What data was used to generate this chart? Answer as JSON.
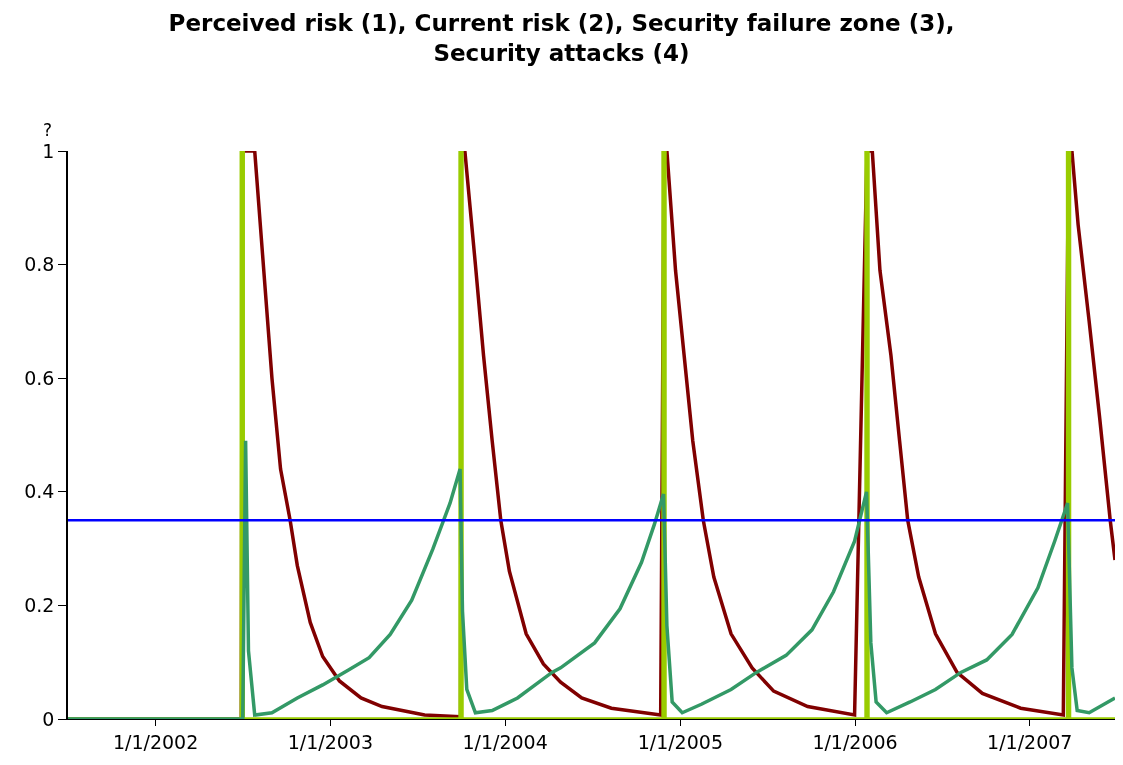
{
  "chart_data": {
    "type": "line",
    "title": "Perceived risk (1), Current risk (2), Security failure zone (3), Security attacks (4)",
    "ylabel": "?",
    "xlim": [
      "2001-07-02",
      "2007-06-28"
    ],
    "xticks": [
      {
        "value": "2002-01-01",
        "label": "1/1/2002"
      },
      {
        "value": "2003-01-01",
        "label": "1/1/2003"
      },
      {
        "value": "2004-01-01",
        "label": "1/1/2004"
      },
      {
        "value": "2005-01-01",
        "label": "1/1/2005"
      },
      {
        "value": "2006-01-01",
        "label": "1/1/2006"
      },
      {
        "value": "2007-01-01",
        "label": "1/1/2007"
      }
    ],
    "ylim": [
      0,
      1
    ],
    "yticks": [
      0,
      0.2,
      0.4,
      0.6,
      0.8,
      1
    ],
    "marker": "none",
    "line_style": "solid",
    "ref_lines": [
      {
        "axis": "y",
        "value": 0.35,
        "color": "#0000ff"
      }
    ],
    "series": [
      {
        "color": "#800000",
        "x": [
          "2001-07-02",
          "2002-06-29",
          "2002-07-01",
          "2002-07-27",
          "2002-08-14",
          "2002-09-01",
          "2002-09-19",
          "2002-10-09",
          "2002-10-24",
          "2002-11-20",
          "2002-12-16",
          "2003-01-20",
          "2003-03-06",
          "2003-04-19",
          "2003-07-17",
          "2003-09-30",
          "2003-10-01",
          "2003-10-09",
          "2003-10-31",
          "2003-11-17",
          "2003-12-05",
          "2003-12-23",
          "2004-01-10",
          "2004-02-14",
          "2004-03-21",
          "2004-04-26",
          "2004-06-09",
          "2004-08-10",
          "2004-11-21",
          "2004-11-28",
          "2004-12-04",
          "2004-12-22",
          "2005-01-09",
          "2005-01-27",
          "2005-02-18",
          "2005-03-12",
          "2005-04-17",
          "2005-05-31",
          "2005-07-15",
          "2005-09-24",
          "2005-12-31",
          "2006-01-26",
          "2006-02-06",
          "2006-02-22",
          "2006-03-17",
          "2006-04-04",
          "2006-04-21",
          "2006-05-14",
          "2006-06-18",
          "2006-08-02",
          "2006-09-24",
          "2006-12-13",
          "2007-03-12",
          "2007-03-23",
          "2007-03-30",
          "2007-04-12",
          "2007-05-05",
          "2007-05-27",
          "2007-06-18",
          "2007-06-28"
        ],
        "values": [
          0,
          0,
          1,
          1,
          0.8,
          0.6,
          0.44,
          0.35,
          0.27,
          0.17,
          0.11,
          0.067,
          0.037,
          0.022,
          0.007,
          0.004,
          1,
          1,
          0.8,
          0.64,
          0.49,
          0.35,
          0.26,
          0.15,
          0.097,
          0.065,
          0.037,
          0.019,
          0.007,
          1,
          1,
          0.79,
          0.64,
          0.49,
          0.35,
          0.25,
          0.15,
          0.09,
          0.049,
          0.022,
          0.007,
          1,
          1,
          0.79,
          0.64,
          0.49,
          0.35,
          0.25,
          0.15,
          0.082,
          0.045,
          0.019,
          0.007,
          1,
          1,
          0.87,
          0.7,
          0.53,
          0.35,
          0.28
        ]
      },
      {
        "color": "#99cc00",
        "x": [
          "2001-07-02",
          "2002-06-29",
          "2002-06-29",
          "2002-07-03",
          "2002-07-03",
          "2003-09-29",
          "2003-09-29",
          "2003-10-03",
          "2003-10-03",
          "2004-11-26",
          "2004-11-26",
          "2004-11-30",
          "2004-11-30",
          "2006-01-24",
          "2006-01-24",
          "2006-01-28",
          "2006-01-28",
          "2007-03-21",
          "2007-03-21",
          "2007-03-25",
          "2007-03-25",
          "2007-06-28"
        ],
        "values": [
          0,
          0,
          1,
          1,
          0,
          0,
          1,
          1,
          0,
          0,
          1,
          1,
          0,
          0,
          1,
          1,
          0,
          0,
          1,
          1,
          0,
          0
        ]
      },
      {
        "color": "#339966",
        "x": [
          "2001-07-02",
          "2002-07-02",
          "2002-07-08",
          "2002-07-14",
          "2002-07-27",
          "2002-09-01",
          "2002-10-24",
          "2002-12-16",
          "2003-02-07",
          "2003-03-23",
          "2003-05-06",
          "2003-06-20",
          "2003-08-03",
          "2003-09-08",
          "2003-09-29",
          "2003-10-04",
          "2003-10-13",
          "2003-10-31",
          "2003-12-05",
          "2004-01-27",
          "2004-04-08",
          "2004-04-26",
          "2004-07-06",
          "2004-08-28",
          "2004-10-12",
          "2004-11-08",
          "2004-11-27",
          "2004-12-04",
          "2004-12-15",
          "2005-01-05",
          "2005-02-14",
          "2005-04-17",
          "2005-06-09",
          "2005-08-10",
          "2005-10-03",
          "2005-11-17",
          "2005-12-31",
          "2006-01-25",
          "2006-02-03",
          "2006-02-14",
          "2006-03-08",
          "2006-04-26",
          "2006-06-18",
          "2006-08-10",
          "2006-10-03",
          "2006-11-25",
          "2007-01-18",
          "2007-02-22",
          "2007-03-21",
          "2007-03-30",
          "2007-04-10",
          "2007-05-05",
          "2007-06-28"
        ],
        "values": [
          0,
          0,
          0.49,
          0.12,
          0.007,
          0.011,
          0.037,
          0.06,
          0.086,
          0.108,
          0.149,
          0.209,
          0.299,
          0.38,
          0.44,
          0.19,
          0.052,
          0.011,
          0.015,
          0.037,
          0.082,
          0.09,
          0.134,
          0.194,
          0.276,
          0.343,
          0.396,
          0.164,
          0.03,
          0.011,
          0.026,
          0.052,
          0.082,
          0.112,
          0.157,
          0.224,
          0.313,
          0.4,
          0.134,
          0.03,
          0.011,
          0.03,
          0.052,
          0.082,
          0.104,
          0.149,
          0.231,
          0.313,
          0.38,
          0.09,
          0.015,
          0.011,
          0.037
        ]
      }
    ]
  }
}
